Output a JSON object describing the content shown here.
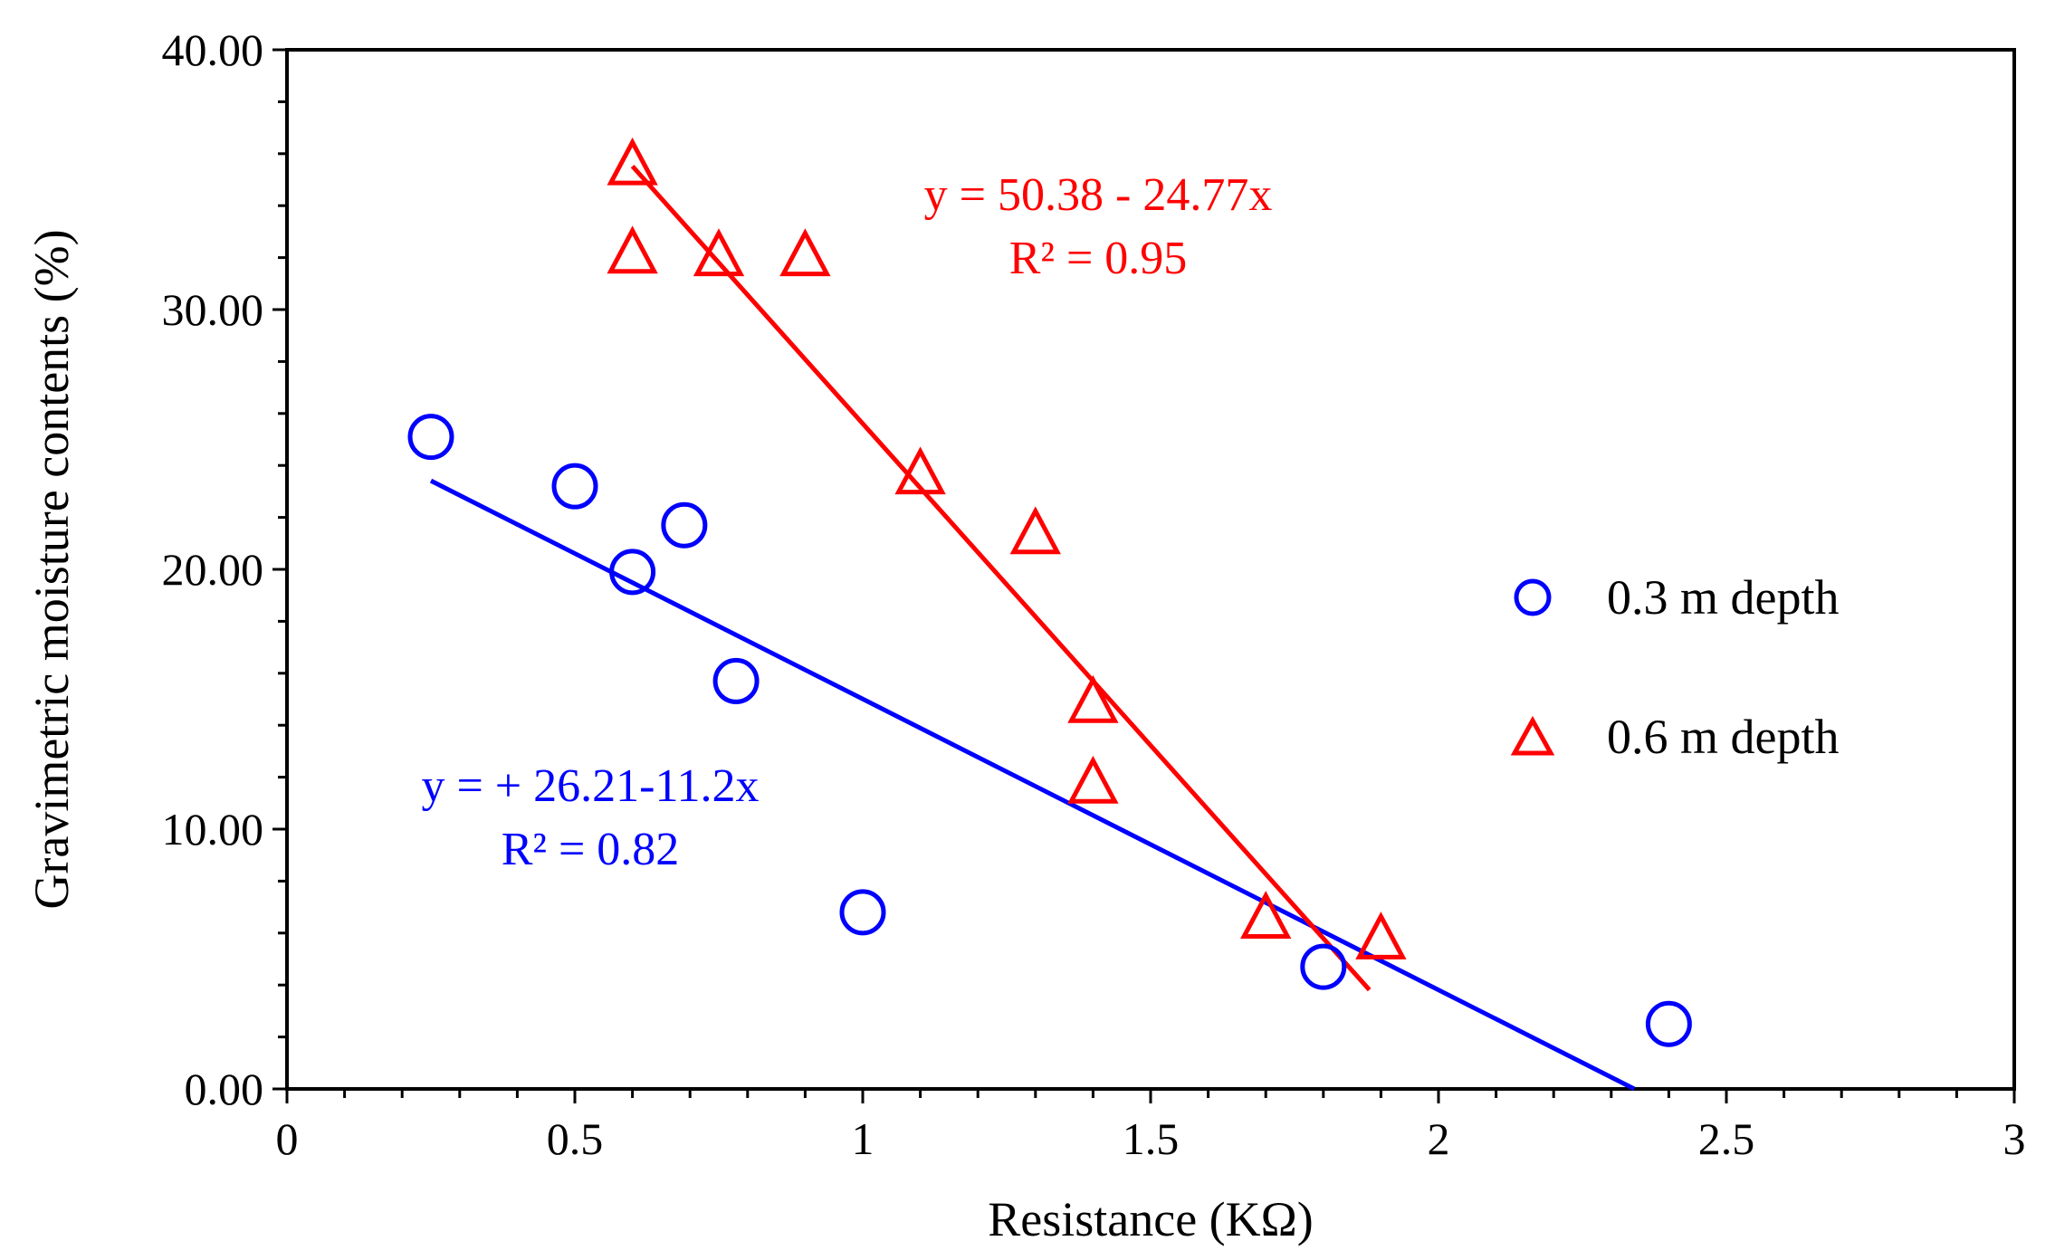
{
  "chart_data": {
    "type": "scatter",
    "xlabel": "Resistance (KΩ)",
    "ylabel": "Gravimetric moisture contents (%)",
    "xlim": [
      0,
      3
    ],
    "ylim": [
      0,
      40
    ],
    "x_ticks": [
      0,
      0.5,
      1,
      1.5,
      2,
      2.5,
      3
    ],
    "x_tick_labels": [
      "0",
      "0.5",
      "1",
      "1.5",
      "2",
      "2.5",
      "3"
    ],
    "y_ticks": [
      0,
      10,
      20,
      30,
      40
    ],
    "y_tick_labels": [
      "0.00",
      "10.00",
      "20.00",
      "30.00",
      "40.00"
    ],
    "grid": false,
    "legend_position": "right",
    "series": [
      {
        "name": "0.3 m depth",
        "marker": "circle",
        "color": "#0000ff",
        "x": [
          0.25,
          0.5,
          0.6,
          0.69,
          0.78,
          1.0,
          1.8,
          2.4
        ],
        "y": [
          25.1,
          23.2,
          19.9,
          21.7,
          15.7,
          6.8,
          4.7,
          2.5
        ],
        "trendline": {
          "intercept": 26.21,
          "slope": -11.2,
          "x_range": [
            0.25,
            2.34
          ],
          "equation": "y = + 26.21-11.2x",
          "r2": "R² = 0.82"
        }
      },
      {
        "name": "0.6 m depth",
        "marker": "triangle",
        "color": "#ff0000",
        "x": [
          0.6,
          0.6,
          0.75,
          0.9,
          1.1,
          1.3,
          1.4,
          1.4,
          1.7,
          1.9
        ],
        "y": [
          35.5,
          32.1,
          32.0,
          32.0,
          23.6,
          21.3,
          14.8,
          11.7,
          6.5,
          5.7
        ],
        "trendline": {
          "intercept": 50.38,
          "slope": -24.77,
          "x_range": [
            0.6,
            1.88
          ],
          "equation": "y = 50.38 - 24.77x",
          "r2": "R² = 0.95"
        }
      }
    ]
  }
}
